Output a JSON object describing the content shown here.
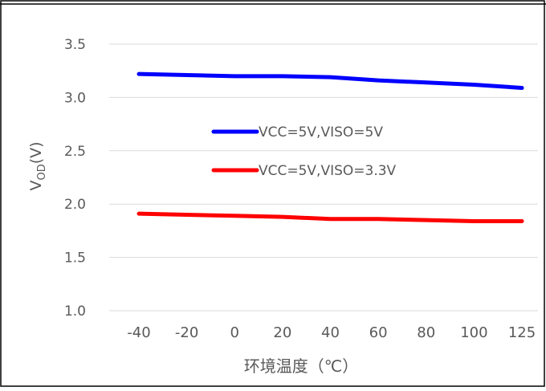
{
  "chart_data": {
    "type": "line",
    "categories": [
      "-40",
      "-20",
      "0",
      "20",
      "40",
      "60",
      "80",
      "100",
      "125"
    ],
    "series": [
      {
        "name": "VCC=5V,VISO=5V",
        "color": "#0000ff",
        "values": [
          3.22,
          3.21,
          3.2,
          3.2,
          3.19,
          3.16,
          3.14,
          3.12,
          3.09
        ]
      },
      {
        "name": "VCC=5V,VISO=3.3V",
        "color": "#ff0000",
        "values": [
          1.91,
          1.9,
          1.89,
          1.88,
          1.86,
          1.86,
          1.85,
          1.84,
          1.84
        ]
      }
    ],
    "xlabel": "环境温度（℃）",
    "ylabel_main": "V",
    "ylabel_sub": "OD",
    "ylabel_unit": "(V)",
    "ylim": [
      1.0,
      3.5
    ],
    "yticks": [
      "1.0",
      "1.5",
      "2.0",
      "2.5",
      "3.0",
      "3.5"
    ],
    "grid": true,
    "legend_position": "center"
  }
}
